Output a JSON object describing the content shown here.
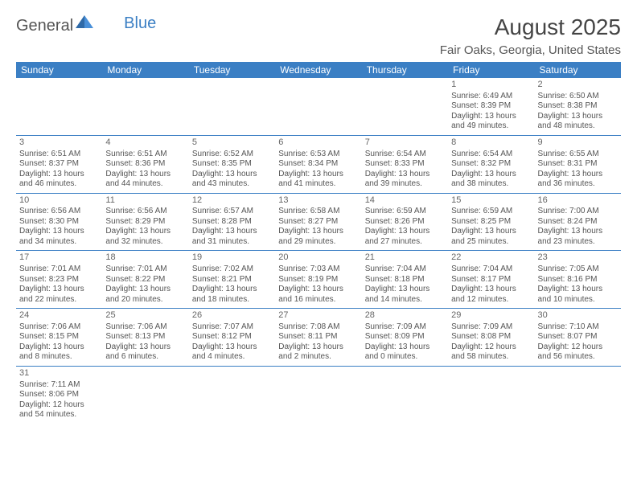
{
  "logo": {
    "text1": "General",
    "text2": "Blue"
  },
  "title": "August 2025",
  "location": "Fair Oaks, Georgia, United States",
  "colors": {
    "header_bg": "#3b7fc4",
    "header_text": "#ffffff",
    "row_border": "#3b7fc4",
    "text": "#555555",
    "title_text": "#444444",
    "bg": "#ffffff",
    "logo_tri1": "#2f6aa8",
    "logo_tri2": "#4a90d9"
  },
  "weekday_labels": [
    "Sunday",
    "Monday",
    "Tuesday",
    "Wednesday",
    "Thursday",
    "Friday",
    "Saturday"
  ],
  "days": {
    "1": {
      "sunrise": "6:49 AM",
      "sunset": "8:39 PM",
      "dl_h": 13,
      "dl_m": 49
    },
    "2": {
      "sunrise": "6:50 AM",
      "sunset": "8:38 PM",
      "dl_h": 13,
      "dl_m": 48
    },
    "3": {
      "sunrise": "6:51 AM",
      "sunset": "8:37 PM",
      "dl_h": 13,
      "dl_m": 46
    },
    "4": {
      "sunrise": "6:51 AM",
      "sunset": "8:36 PM",
      "dl_h": 13,
      "dl_m": 44
    },
    "5": {
      "sunrise": "6:52 AM",
      "sunset": "8:35 PM",
      "dl_h": 13,
      "dl_m": 43
    },
    "6": {
      "sunrise": "6:53 AM",
      "sunset": "8:34 PM",
      "dl_h": 13,
      "dl_m": 41
    },
    "7": {
      "sunrise": "6:54 AM",
      "sunset": "8:33 PM",
      "dl_h": 13,
      "dl_m": 39
    },
    "8": {
      "sunrise": "6:54 AM",
      "sunset": "8:32 PM",
      "dl_h": 13,
      "dl_m": 38
    },
    "9": {
      "sunrise": "6:55 AM",
      "sunset": "8:31 PM",
      "dl_h": 13,
      "dl_m": 36
    },
    "10": {
      "sunrise": "6:56 AM",
      "sunset": "8:30 PM",
      "dl_h": 13,
      "dl_m": 34
    },
    "11": {
      "sunrise": "6:56 AM",
      "sunset": "8:29 PM",
      "dl_h": 13,
      "dl_m": 32
    },
    "12": {
      "sunrise": "6:57 AM",
      "sunset": "8:28 PM",
      "dl_h": 13,
      "dl_m": 31
    },
    "13": {
      "sunrise": "6:58 AM",
      "sunset": "8:27 PM",
      "dl_h": 13,
      "dl_m": 29
    },
    "14": {
      "sunrise": "6:59 AM",
      "sunset": "8:26 PM",
      "dl_h": 13,
      "dl_m": 27
    },
    "15": {
      "sunrise": "6:59 AM",
      "sunset": "8:25 PM",
      "dl_h": 13,
      "dl_m": 25
    },
    "16": {
      "sunrise": "7:00 AM",
      "sunset": "8:24 PM",
      "dl_h": 13,
      "dl_m": 23
    },
    "17": {
      "sunrise": "7:01 AM",
      "sunset": "8:23 PM",
      "dl_h": 13,
      "dl_m": 22
    },
    "18": {
      "sunrise": "7:01 AM",
      "sunset": "8:22 PM",
      "dl_h": 13,
      "dl_m": 20
    },
    "19": {
      "sunrise": "7:02 AM",
      "sunset": "8:21 PM",
      "dl_h": 13,
      "dl_m": 18
    },
    "20": {
      "sunrise": "7:03 AM",
      "sunset": "8:19 PM",
      "dl_h": 13,
      "dl_m": 16
    },
    "21": {
      "sunrise": "7:04 AM",
      "sunset": "8:18 PM",
      "dl_h": 13,
      "dl_m": 14
    },
    "22": {
      "sunrise": "7:04 AM",
      "sunset": "8:17 PM",
      "dl_h": 13,
      "dl_m": 12
    },
    "23": {
      "sunrise": "7:05 AM",
      "sunset": "8:16 PM",
      "dl_h": 13,
      "dl_m": 10
    },
    "24": {
      "sunrise": "7:06 AM",
      "sunset": "8:15 PM",
      "dl_h": 13,
      "dl_m": 8
    },
    "25": {
      "sunrise": "7:06 AM",
      "sunset": "8:13 PM",
      "dl_h": 13,
      "dl_m": 6
    },
    "26": {
      "sunrise": "7:07 AM",
      "sunset": "8:12 PM",
      "dl_h": 13,
      "dl_m": 4
    },
    "27": {
      "sunrise": "7:08 AM",
      "sunset": "8:11 PM",
      "dl_h": 13,
      "dl_m": 2
    },
    "28": {
      "sunrise": "7:09 AM",
      "sunset": "8:09 PM",
      "dl_h": 13,
      "dl_m": 0
    },
    "29": {
      "sunrise": "7:09 AM",
      "sunset": "8:08 PM",
      "dl_h": 12,
      "dl_m": 58
    },
    "30": {
      "sunrise": "7:10 AM",
      "sunset": "8:07 PM",
      "dl_h": 12,
      "dl_m": 56
    },
    "31": {
      "sunrise": "7:11 AM",
      "sunset": "8:06 PM",
      "dl_h": 12,
      "dl_m": 54
    }
  },
  "grid": [
    [
      null,
      null,
      null,
      null,
      null,
      "1",
      "2"
    ],
    [
      "3",
      "4",
      "5",
      "6",
      "7",
      "8",
      "9"
    ],
    [
      "10",
      "11",
      "12",
      "13",
      "14",
      "15",
      "16"
    ],
    [
      "17",
      "18",
      "19",
      "20",
      "21",
      "22",
      "23"
    ],
    [
      "24",
      "25",
      "26",
      "27",
      "28",
      "29",
      "30"
    ],
    [
      "31",
      null,
      null,
      null,
      null,
      null,
      null
    ]
  ]
}
